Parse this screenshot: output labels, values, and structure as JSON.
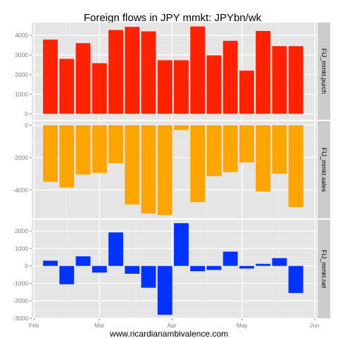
{
  "chart_data": {
    "type": "bar",
    "title": "Foreign flows in JPY mmkt: JPYbn/wk",
    "caption": "www.ricardianambivalence.com",
    "x_ticks": [
      "Feb",
      "Mar",
      "Apr",
      "May",
      "Jun"
    ],
    "weeks": [
      "2013-02-08",
      "2013-02-15",
      "2013-02-22",
      "2013-03-01",
      "2013-03-08",
      "2013-03-15",
      "2013-03-22",
      "2013-03-29",
      "2013-04-05",
      "2013-04-12",
      "2013-04-19",
      "2013-04-26",
      "2013-05-03",
      "2013-05-10",
      "2013-05-17",
      "2013-05-24"
    ],
    "grid": true,
    "panels": [
      {
        "strip_label": "FIJ_mmkt.purch",
        "color": "#FF2200",
        "yticks": [
          0,
          1000,
          2000,
          3000,
          4000
        ],
        "ylim": [
          -300,
          4650
        ],
        "values": [
          3780,
          2800,
          3600,
          2580,
          4270,
          4430,
          4200,
          2730,
          2730,
          4450,
          2980,
          3720,
          2200,
          4220,
          3450,
          3450
        ]
      },
      {
        "strip_label": "FIJ_mmkt.sales",
        "color": "#FFA500",
        "yticks": [
          -4000,
          -2000,
          0
        ],
        "ylim": [
          -5750,
          250
        ],
        "values": [
          -3500,
          -3850,
          -3050,
          -2950,
          -2350,
          -4900,
          -5450,
          -5550,
          -300,
          -4750,
          -3150,
          -2900,
          -2300,
          -4100,
          -3000,
          -5050
        ]
      },
      {
        "strip_label": "FIJ_mmkt.net",
        "color": "#0033FF",
        "yticks": [
          -3000,
          -2000,
          -1000,
          0,
          1000,
          2000
        ],
        "ylim": [
          -3000,
          2650
        ],
        "values": [
          300,
          -1050,
          550,
          -380,
          1920,
          -450,
          -1250,
          -2800,
          2450,
          -300,
          -230,
          820,
          -150,
          120,
          450,
          -1550
        ]
      }
    ]
  }
}
